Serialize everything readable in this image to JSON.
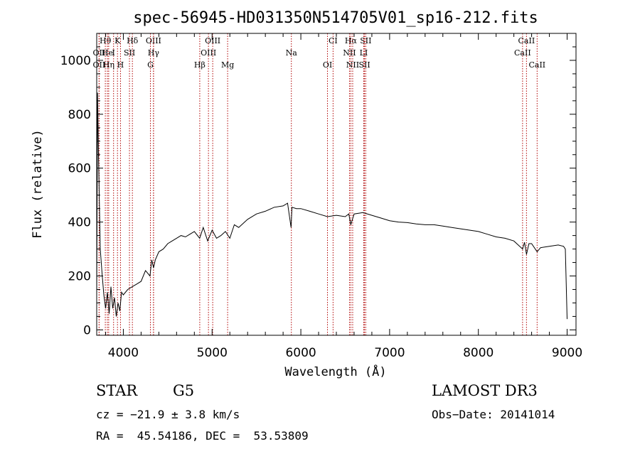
{
  "chart_data": {
    "type": "line",
    "title": "spec-56945-HD031350N514705V01_sp16-212.fits",
    "xlabel": "Wavelength (Å)",
    "ylabel": "Flux (relative)",
    "xlim": [
      3700,
      9100
    ],
    "ylim": [
      -20,
      1100
    ],
    "xticks": [
      4000,
      5000,
      6000,
      7000,
      8000,
      9000
    ],
    "yticks": [
      0,
      200,
      400,
      600,
      800,
      1000
    ],
    "series": [
      {
        "name": "flux",
        "x": [
          3700,
          3710,
          3720,
          3740,
          3760,
          3780,
          3800,
          3820,
          3840,
          3860,
          3880,
          3900,
          3920,
          3940,
          3960,
          3980,
          4000,
          4050,
          4100,
          4150,
          4200,
          4250,
          4300,
          4320,
          4340,
          4360,
          4400,
          4450,
          4500,
          4550,
          4600,
          4650,
          4700,
          4750,
          4800,
          4860,
          4900,
          4950,
          5000,
          5050,
          5100,
          5150,
          5200,
          5250,
          5300,
          5400,
          5500,
          5600,
          5700,
          5800,
          5850,
          5890,
          5900,
          5950,
          6000,
          6100,
          6200,
          6300,
          6400,
          6500,
          6540,
          6563,
          6600,
          6700,
          6800,
          6900,
          7000,
          7100,
          7200,
          7300,
          7400,
          7500,
          7600,
          7700,
          7800,
          7900,
          8000,
          8100,
          8200,
          8300,
          8400,
          8498,
          8520,
          8542,
          8570,
          8600,
          8662,
          8700,
          8800,
          8900,
          8960,
          8980,
          9000
        ],
        "values": [
          120,
          880,
          650,
          300,
          210,
          130,
          80,
          140,
          60,
          160,
          80,
          120,
          50,
          100,
          70,
          140,
          130,
          150,
          160,
          170,
          180,
          220,
          200,
          260,
          230,
          260,
          290,
          300,
          320,
          330,
          340,
          350,
          345,
          355,
          365,
          340,
          380,
          330,
          370,
          340,
          350,
          365,
          340,
          390,
          380,
          410,
          430,
          440,
          455,
          460,
          470,
          380,
          455,
          450,
          450,
          440,
          430,
          420,
          425,
          420,
          430,
          390,
          430,
          435,
          425,
          415,
          405,
          400,
          398,
          393,
          390,
          390,
          385,
          380,
          375,
          370,
          365,
          355,
          345,
          340,
          330,
          300,
          325,
          280,
          320,
          320,
          290,
          305,
          310,
          315,
          310,
          300,
          40
        ]
      }
    ],
    "spectral_lines": [
      {
        "name": "Hθ",
        "x": 3797,
        "row": 0
      },
      {
        "name": "K",
        "x": 3934,
        "row": 0
      },
      {
        "name": "Hδ",
        "x": 4102,
        "row": 0
      },
      {
        "name": "OIII",
        "x": 4340,
        "row": 0
      },
      {
        "name": "OIII",
        "x": 5007,
        "row": 0
      },
      {
        "name": "CI",
        "x": 6363,
        "row": 0
      },
      {
        "name": "Hα",
        "x": 6563,
        "row": 0
      },
      {
        "name": "SII",
        "x": 6731,
        "row": 0
      },
      {
        "name": "CaII",
        "x": 8542,
        "row": 0
      },
      {
        "name": "OII",
        "x": 3727,
        "row": 1
      },
      {
        "name": "He",
        "x": 3820,
        "row": 1
      },
      {
        "name": "I",
        "x": 3890,
        "row": 1
      },
      {
        "name": "SII",
        "x": 4069,
        "row": 1
      },
      {
        "name": "Hγ",
        "x": 4340,
        "row": 1
      },
      {
        "name": "OIII",
        "x": 4959,
        "row": 1
      },
      {
        "name": "Na",
        "x": 5893,
        "row": 1
      },
      {
        "name": "NII",
        "x": 6548,
        "row": 1
      },
      {
        "name": "LI",
        "x": 6708,
        "row": 1
      },
      {
        "name": "CaII",
        "x": 8498,
        "row": 1
      },
      {
        "name": "OII",
        "x": 3727,
        "row": 2
      },
      {
        "name": "Hη",
        "x": 3835,
        "row": 2
      },
      {
        "name": "H",
        "x": 3968,
        "row": 2
      },
      {
        "name": "G",
        "x": 4305,
        "row": 2
      },
      {
        "name": "Hβ",
        "x": 4861,
        "row": 2
      },
      {
        "name": "Mg",
        "x": 5175,
        "row": 2
      },
      {
        "name": "OI",
        "x": 6300,
        "row": 2
      },
      {
        "name": "NII",
        "x": 6584,
        "row": 2
      },
      {
        "name": "SII",
        "x": 6717,
        "row": 2
      },
      {
        "name": "CaII",
        "x": 8662,
        "row": 2
      }
    ],
    "grid": false,
    "legend": "none"
  },
  "info": {
    "object_type": "STAR",
    "subclass": "G5",
    "survey": "LAMOST DR3",
    "redshift_text": "cz = −21.9 ± 3.8 km/s",
    "obs_date_text": "Obs−Date: 20141014",
    "coords_text": "RA =  45.54186, DEC =  53.53809"
  }
}
